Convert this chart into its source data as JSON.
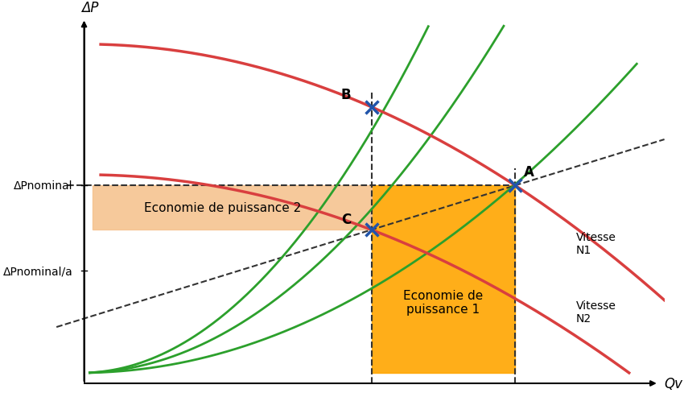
{
  "title": "",
  "xlabel": "Qv",
  "ylabel": "ΔP",
  "background_color": "#ffffff",
  "ax_bg": "#ffffff",
  "figsize": [
    8.5,
    4.89
  ],
  "dpi": 100,
  "x_range": [
    0,
    10
  ],
  "y_range": [
    0,
    10
  ],
  "point_A": [
    7.8,
    5.5
  ],
  "point_B": [
    5.2,
    7.8
  ],
  "point_C": [
    5.2,
    4.2
  ],
  "dp_nominal": 5.5,
  "dp_Pnominal_over_a": 3.0,
  "color_curve_N1": "#d93f3f",
  "color_curve_N2": "#d93f3f",
  "color_green_curves": "#2ca02c",
  "color_orange_fill1": "#FFA500",
  "color_orange_fill2": "#F5C08A",
  "color_points": "#2255aa",
  "color_dashed": "#333333",
  "label_A": "A",
  "label_B": "B",
  "label_C": "C",
  "label_vitesse_N1": "Vitesse\nN1",
  "label_vitesse_N2": "Vitesse\nN2",
  "label_dp_nominal": "ΔPnominal",
  "label_dp_nominal_a": "ΔPnominal/a",
  "label_eco1": "Economie de\npuissance 1",
  "label_eco2": "Economie de puissance 2"
}
